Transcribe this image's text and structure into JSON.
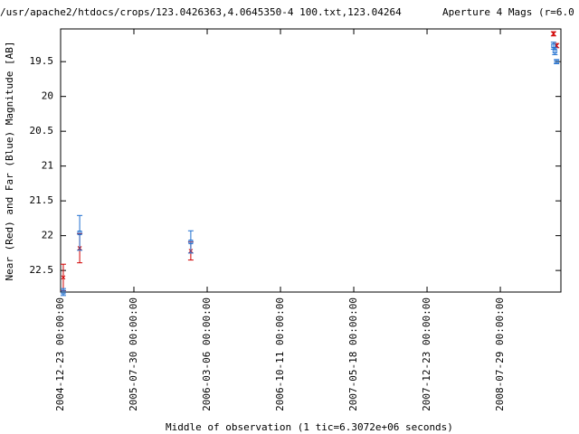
{
  "chart_data": {
    "type": "errorbar",
    "title": "/usr/apache2/htdocs/crops/123.0426363,4.0645350-4 100.txt,123.04264",
    "subtitle": "Aperture 4 Mags (r=6.0",
    "x_label": "Middle of observation (1 tic=6.3072e+06 seconds)",
    "y_label": "Near (Red) and Far (Blue) Magnitude [AB]",
    "xlim": [
      "2004-12-23 00:00:00",
      "2009-01-26 00:00:00"
    ],
    "xticks": [
      "2004-12-23 00:00:00",
      "2005-07-30 00:00:00",
      "2006-03-06 00:00:00",
      "2006-10-11 00:00:00",
      "2007-05-18 00:00:00",
      "2007-12-23 00:00:00",
      "2008-07-29 00:00:00"
    ],
    "ylim": [
      19.03,
      22.81
    ],
    "y_inverted": true,
    "yticks": [
      19.5,
      20,
      20.5,
      21,
      21.5,
      22,
      22.5
    ],
    "series": [
      {
        "name": "Near",
        "color": "#d00000",
        "marker": "cross",
        "x": [
          "2004-12-31",
          "2005-02-18",
          "2006-01-16",
          "2009-01-04",
          "2009-01-13"
        ],
        "values": [
          22.6,
          22.18,
          22.22,
          19.1,
          19.27
        ],
        "errors": [
          0.19,
          0.21,
          0.13,
          0.03,
          0.03
        ]
      },
      {
        "name": "Far",
        "color": "#1f6fd0",
        "marker": "square",
        "x": [
          "2004-12-31",
          "2005-02-18",
          "2006-01-16",
          "2009-01-04",
          "2009-01-08",
          "2009-01-13"
        ],
        "values": [
          22.81,
          21.96,
          22.09,
          19.27,
          19.35,
          19.5
        ],
        "errors": [
          0.05,
          0.25,
          0.16,
          0.05,
          0.05,
          0.03
        ]
      }
    ]
  }
}
